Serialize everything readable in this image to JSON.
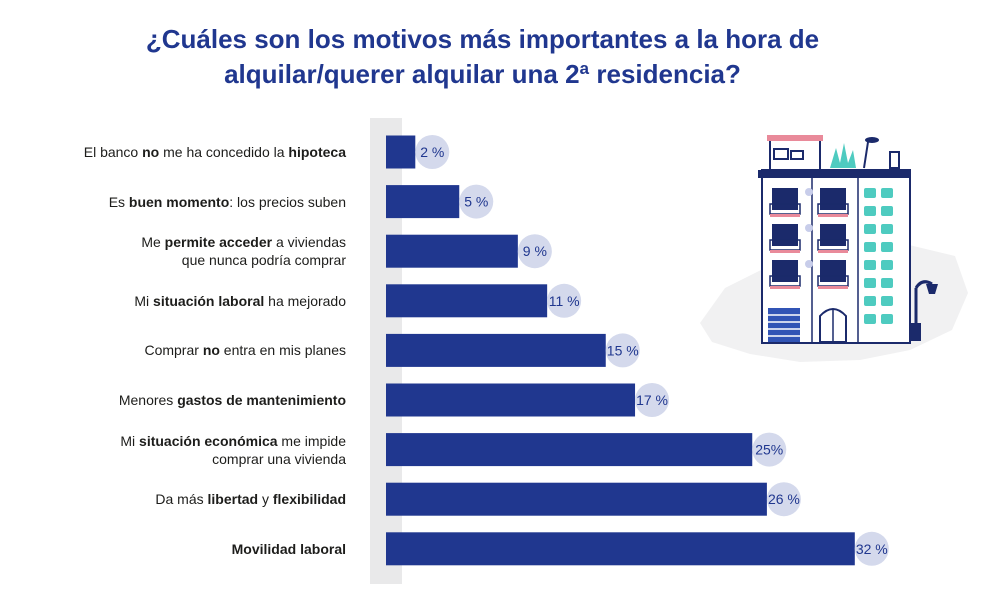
{
  "title": {
    "line1": "¿Cuáles son los motivos más importantes a la hora de",
    "line2": "alquilar/querer alquilar una 2ª residencia?"
  },
  "colors": {
    "title": "#20378f",
    "bar": "#20378f",
    "bubble": "#d4d9ec",
    "axis_band": "#e9e9ea",
    "label_text": "#1d1d1b"
  },
  "chart_data": {
    "type": "bar",
    "orientation": "horizontal",
    "title": "¿Cuáles son los motivos más importantes a la hora de alquilar/querer alquilar una 2ª residencia?",
    "xlim": [
      0,
      35
    ],
    "grid": false,
    "legend": "none",
    "categories": [
      [
        {
          "t": "El banco "
        },
        {
          "t": "no",
          "b": true
        },
        {
          "t": " me ha concedido la "
        },
        {
          "t": "hipoteca",
          "b": true
        }
      ],
      [
        {
          "t": "Es "
        },
        {
          "t": "buen momento",
          "b": true
        },
        {
          "t": ": los precios suben"
        }
      ],
      [
        {
          "t": "Me "
        },
        {
          "t": "permite acceder",
          "b": true
        },
        {
          "t": " a viviendas"
        },
        {
          "br": true
        },
        {
          "t": "que nunca podría comprar"
        }
      ],
      [
        {
          "t": "Mi "
        },
        {
          "t": "situación laboral",
          "b": true
        },
        {
          "t": " ha mejorado"
        }
      ],
      [
        {
          "t": "Comprar "
        },
        {
          "t": "no",
          "b": true
        },
        {
          "t": " entra en mis planes"
        }
      ],
      [
        {
          "t": "Menores "
        },
        {
          "t": "gastos de mantenimiento",
          "b": true
        }
      ],
      [
        {
          "t": "Mi "
        },
        {
          "t": "situación económica",
          "b": true
        },
        {
          "t": " me impide"
        },
        {
          "br": true
        },
        {
          "t": "comprar una vivienda"
        }
      ],
      [
        {
          "t": "Da más "
        },
        {
          "t": "libertad",
          "b": true
        },
        {
          "t": " y "
        },
        {
          "t": "flexibilidad",
          "b": true
        }
      ],
      [
        {
          "t": "Movilidad laboral",
          "b": true
        }
      ]
    ],
    "values": [
      2,
      5,
      9,
      11,
      15,
      17,
      25,
      26,
      32
    ],
    "value_labels": [
      "2 %",
      "5 %",
      "9 %",
      "11 %",
      "15 %",
      "17 %",
      "25%",
      "26 %",
      "32 %"
    ]
  },
  "illustration": {
    "icon": "apartment-building-illustration"
  }
}
